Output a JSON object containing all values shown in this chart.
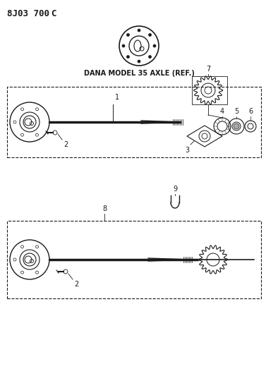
{
  "title": "8J03 700C",
  "dana_label": "DANA MODEL 35 AXLE (REF.)",
  "bg_color": "#ffffff",
  "line_color": "#1a1a1a",
  "part_numbers": {
    "top_diagram": [
      "1",
      "2",
      "3",
      "4",
      "5",
      "6",
      "7"
    ],
    "bottom_diagram": [
      "8",
      "9",
      "2"
    ]
  },
  "figsize": [
    3.94,
    5.33
  ],
  "dpi": 100
}
